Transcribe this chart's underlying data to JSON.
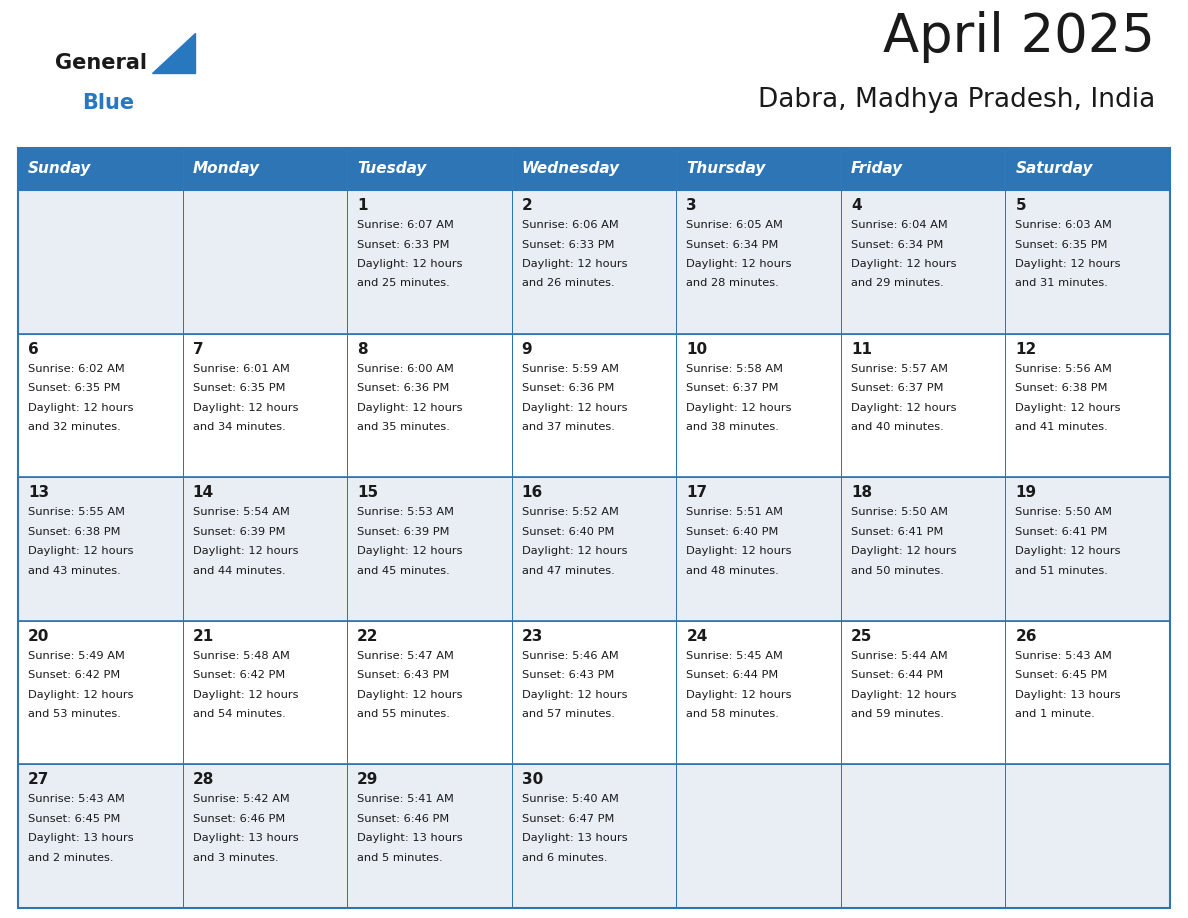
{
  "title": "April 2025",
  "subtitle": "Dabra, Madhya Pradesh, India",
  "header_bg": "#2e75b6",
  "header_text_color": "#ffffff",
  "row_bg_light": "#e9eef5",
  "row_bg_white": "#ffffff",
  "border_color": "#2e75b6",
  "text_color": "#1a1a1a",
  "days_of_week": [
    "Sunday",
    "Monday",
    "Tuesday",
    "Wednesday",
    "Thursday",
    "Friday",
    "Saturday"
  ],
  "weeks": [
    [
      {
        "day": "",
        "lines": []
      },
      {
        "day": "",
        "lines": []
      },
      {
        "day": "1",
        "lines": [
          "Sunrise: 6:07 AM",
          "Sunset: 6:33 PM",
          "Daylight: 12 hours",
          "and 25 minutes."
        ]
      },
      {
        "day": "2",
        "lines": [
          "Sunrise: 6:06 AM",
          "Sunset: 6:33 PM",
          "Daylight: 12 hours",
          "and 26 minutes."
        ]
      },
      {
        "day": "3",
        "lines": [
          "Sunrise: 6:05 AM",
          "Sunset: 6:34 PM",
          "Daylight: 12 hours",
          "and 28 minutes."
        ]
      },
      {
        "day": "4",
        "lines": [
          "Sunrise: 6:04 AM",
          "Sunset: 6:34 PM",
          "Daylight: 12 hours",
          "and 29 minutes."
        ]
      },
      {
        "day": "5",
        "lines": [
          "Sunrise: 6:03 AM",
          "Sunset: 6:35 PM",
          "Daylight: 12 hours",
          "and 31 minutes."
        ]
      }
    ],
    [
      {
        "day": "6",
        "lines": [
          "Sunrise: 6:02 AM",
          "Sunset: 6:35 PM",
          "Daylight: 12 hours",
          "and 32 minutes."
        ]
      },
      {
        "day": "7",
        "lines": [
          "Sunrise: 6:01 AM",
          "Sunset: 6:35 PM",
          "Daylight: 12 hours",
          "and 34 minutes."
        ]
      },
      {
        "day": "8",
        "lines": [
          "Sunrise: 6:00 AM",
          "Sunset: 6:36 PM",
          "Daylight: 12 hours",
          "and 35 minutes."
        ]
      },
      {
        "day": "9",
        "lines": [
          "Sunrise: 5:59 AM",
          "Sunset: 6:36 PM",
          "Daylight: 12 hours",
          "and 37 minutes."
        ]
      },
      {
        "day": "10",
        "lines": [
          "Sunrise: 5:58 AM",
          "Sunset: 6:37 PM",
          "Daylight: 12 hours",
          "and 38 minutes."
        ]
      },
      {
        "day": "11",
        "lines": [
          "Sunrise: 5:57 AM",
          "Sunset: 6:37 PM",
          "Daylight: 12 hours",
          "and 40 minutes."
        ]
      },
      {
        "day": "12",
        "lines": [
          "Sunrise: 5:56 AM",
          "Sunset: 6:38 PM",
          "Daylight: 12 hours",
          "and 41 minutes."
        ]
      }
    ],
    [
      {
        "day": "13",
        "lines": [
          "Sunrise: 5:55 AM",
          "Sunset: 6:38 PM",
          "Daylight: 12 hours",
          "and 43 minutes."
        ]
      },
      {
        "day": "14",
        "lines": [
          "Sunrise: 5:54 AM",
          "Sunset: 6:39 PM",
          "Daylight: 12 hours",
          "and 44 minutes."
        ]
      },
      {
        "day": "15",
        "lines": [
          "Sunrise: 5:53 AM",
          "Sunset: 6:39 PM",
          "Daylight: 12 hours",
          "and 45 minutes."
        ]
      },
      {
        "day": "16",
        "lines": [
          "Sunrise: 5:52 AM",
          "Sunset: 6:40 PM",
          "Daylight: 12 hours",
          "and 47 minutes."
        ]
      },
      {
        "day": "17",
        "lines": [
          "Sunrise: 5:51 AM",
          "Sunset: 6:40 PM",
          "Daylight: 12 hours",
          "and 48 minutes."
        ]
      },
      {
        "day": "18",
        "lines": [
          "Sunrise: 5:50 AM",
          "Sunset: 6:41 PM",
          "Daylight: 12 hours",
          "and 50 minutes."
        ]
      },
      {
        "day": "19",
        "lines": [
          "Sunrise: 5:50 AM",
          "Sunset: 6:41 PM",
          "Daylight: 12 hours",
          "and 51 minutes."
        ]
      }
    ],
    [
      {
        "day": "20",
        "lines": [
          "Sunrise: 5:49 AM",
          "Sunset: 6:42 PM",
          "Daylight: 12 hours",
          "and 53 minutes."
        ]
      },
      {
        "day": "21",
        "lines": [
          "Sunrise: 5:48 AM",
          "Sunset: 6:42 PM",
          "Daylight: 12 hours",
          "and 54 minutes."
        ]
      },
      {
        "day": "22",
        "lines": [
          "Sunrise: 5:47 AM",
          "Sunset: 6:43 PM",
          "Daylight: 12 hours",
          "and 55 minutes."
        ]
      },
      {
        "day": "23",
        "lines": [
          "Sunrise: 5:46 AM",
          "Sunset: 6:43 PM",
          "Daylight: 12 hours",
          "and 57 minutes."
        ]
      },
      {
        "day": "24",
        "lines": [
          "Sunrise: 5:45 AM",
          "Sunset: 6:44 PM",
          "Daylight: 12 hours",
          "and 58 minutes."
        ]
      },
      {
        "day": "25",
        "lines": [
          "Sunrise: 5:44 AM",
          "Sunset: 6:44 PM",
          "Daylight: 12 hours",
          "and 59 minutes."
        ]
      },
      {
        "day": "26",
        "lines": [
          "Sunrise: 5:43 AM",
          "Sunset: 6:45 PM",
          "Daylight: 13 hours",
          "and 1 minute."
        ]
      }
    ],
    [
      {
        "day": "27",
        "lines": [
          "Sunrise: 5:43 AM",
          "Sunset: 6:45 PM",
          "Daylight: 13 hours",
          "and 2 minutes."
        ]
      },
      {
        "day": "28",
        "lines": [
          "Sunrise: 5:42 AM",
          "Sunset: 6:46 PM",
          "Daylight: 13 hours",
          "and 3 minutes."
        ]
      },
      {
        "day": "29",
        "lines": [
          "Sunrise: 5:41 AM",
          "Sunset: 6:46 PM",
          "Daylight: 13 hours",
          "and 5 minutes."
        ]
      },
      {
        "day": "30",
        "lines": [
          "Sunrise: 5:40 AM",
          "Sunset: 6:47 PM",
          "Daylight: 13 hours",
          "and 6 minutes."
        ]
      },
      {
        "day": "",
        "lines": []
      },
      {
        "day": "",
        "lines": []
      },
      {
        "day": "",
        "lines": []
      }
    ]
  ]
}
